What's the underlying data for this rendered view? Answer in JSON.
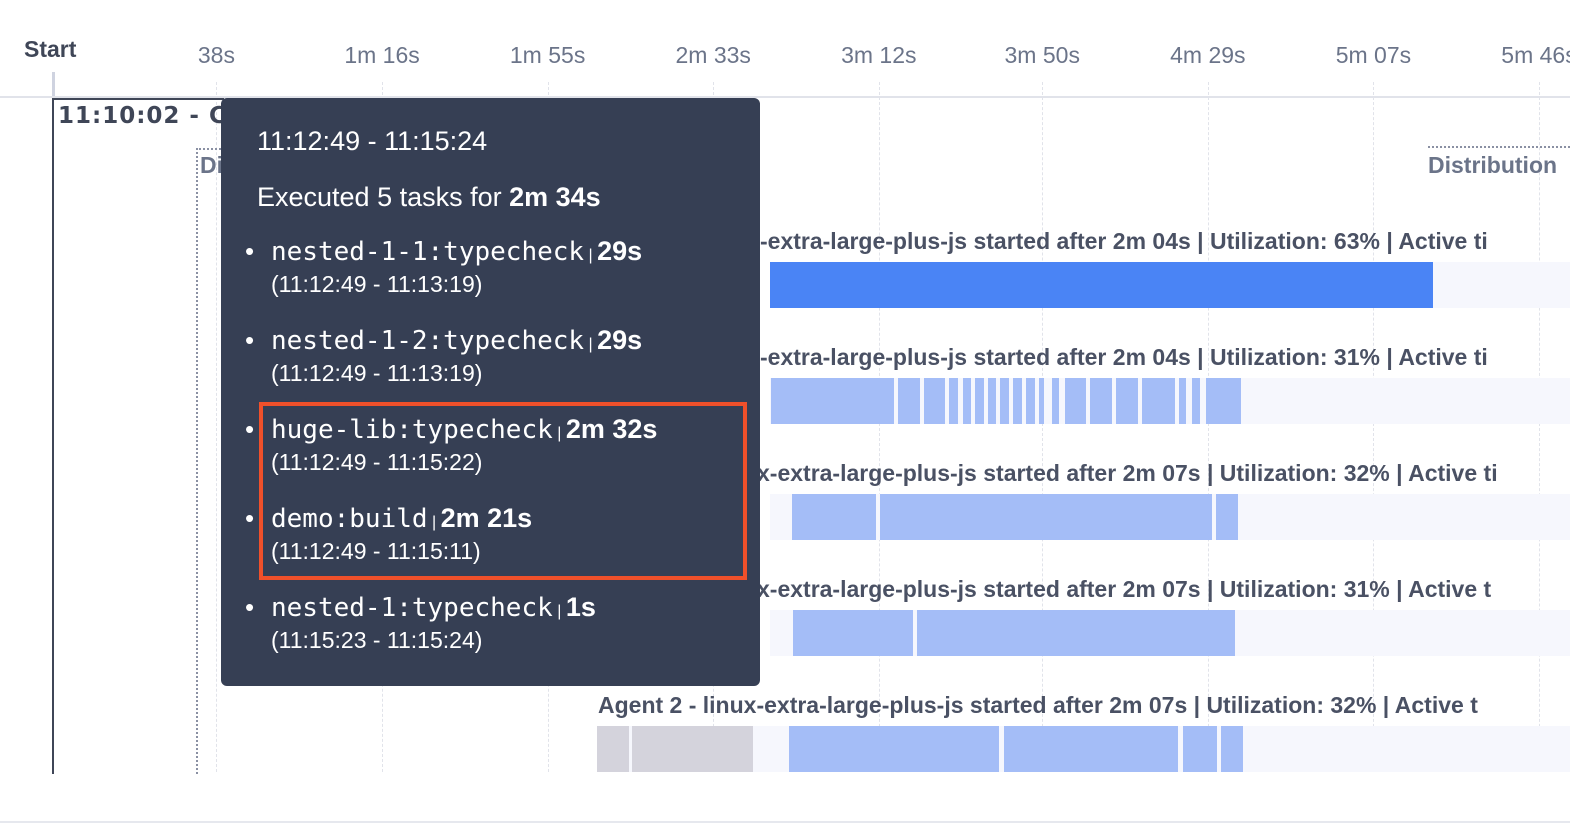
{
  "axis": {
    "start_label": "Start",
    "ticks": [
      {
        "label": "38s",
        "s": 38
      },
      {
        "label": "1m 16s",
        "s": 76.5
      },
      {
        "label": "1m 55s",
        "s": 115
      },
      {
        "label": "2m 33s",
        "s": 153.5
      },
      {
        "label": "3m 12s",
        "s": 192
      },
      {
        "label": "3m 50s",
        "s": 230
      },
      {
        "label": "4m 29s",
        "s": 268.5
      },
      {
        "label": "5m 07s",
        "s": 307
      },
      {
        "label": "5m 46s",
        "s": 345.5
      }
    ]
  },
  "group": {
    "title": "11:10:02 - CI",
    "dist_left_label": "Di",
    "dist_right_label": "Distribution"
  },
  "rows": [
    {
      "label": "-extra-large-plus-js started after 2m 04s | Utilization: 63% | Active ti",
      "track_start": 166.7,
      "segments": [
        [
          166.7,
          320.9,
          "#4a84f5"
        ]
      ]
    },
    {
      "label": "-extra-large-plus-js started after 2m 04s | Utilization: 31% | Active ti",
      "track_start": 166.7,
      "segments": [
        [
          166.9,
          195.5
        ],
        [
          196.5,
          201.6
        ],
        [
          202.5,
          207.4
        ],
        [
          208.3,
          210.4
        ],
        [
          211.6,
          213.4
        ],
        [
          214.4,
          216.5
        ],
        [
          217.4,
          219.2
        ],
        [
          220.2,
          222.3
        ],
        [
          223.2,
          225.3
        ],
        [
          226.2,
          228.3
        ],
        [
          229.2,
          230.4
        ],
        [
          232.3,
          233.9
        ],
        [
          235.3,
          240.2
        ],
        [
          241.1,
          246.2
        ],
        [
          247.1,
          252.3
        ],
        [
          253.2,
          260.9
        ],
        [
          261.8,
          263.5
        ],
        [
          264.8,
          266.7
        ],
        [
          268.1,
          276.2
        ]
      ]
    },
    {
      "label": "x-extra-large-plus-js started after 2m 07s | Utilization: 32% | Active ti",
      "track_start": 166.7,
      "segments": [
        [
          171.8,
          191.3
        ],
        [
          192.3,
          269.5
        ],
        [
          270.5,
          275.5
        ]
      ]
    },
    {
      "label": "x-extra-large-plus-js started after 2m 07s | Utilization: 31% | Active t",
      "track_start": 166.7,
      "segments": [
        [
          172.1,
          199.9
        ],
        [
          200.9,
          274.8
        ]
      ]
    },
    {
      "label": "Agent 2 - linux-extra-large-plus-js started after 2m 07s | Utilization: 32% | Active t",
      "track_start": 126.5,
      "segments": [
        [
          126.5,
          133.9,
          "#d4d3dc"
        ],
        [
          134.6,
          162.8,
          "#d4d3dc"
        ],
        [
          171.1,
          219.9
        ],
        [
          221.1,
          261.6
        ],
        [
          262.7,
          270.6
        ],
        [
          271.6,
          276.7
        ]
      ]
    }
  ],
  "colors": {
    "task": "#a4bdf7",
    "active": "#4a84f5",
    "idle": "#d4d3dc",
    "tooltip_bg": "#363f54",
    "highlight": "#f0502a"
  },
  "tooltip": {
    "range": "11:12:49 - 11:15:24",
    "summary_prefix": "Executed 5 tasks for ",
    "summary_duration": "2m 34s",
    "tasks": [
      {
        "name": "nested-1-1:typecheck",
        "duration": "29s",
        "range": "(11:12:49 - 11:13:19)"
      },
      {
        "name": "nested-1-2:typecheck",
        "duration": "29s",
        "range": "(11:12:49 - 11:13:19)"
      },
      {
        "name": "huge-lib:typecheck",
        "duration": "2m 32s",
        "range": "(11:12:49 - 11:15:22)",
        "highlighted": true
      },
      {
        "name": "demo:build",
        "duration": "2m 21s",
        "range": "(11:12:49 - 11:15:11)",
        "highlighted": true
      },
      {
        "name": "nested-1:typecheck",
        "duration": "1s",
        "range": "(11:15:23 - 11:15:24)"
      }
    ]
  }
}
